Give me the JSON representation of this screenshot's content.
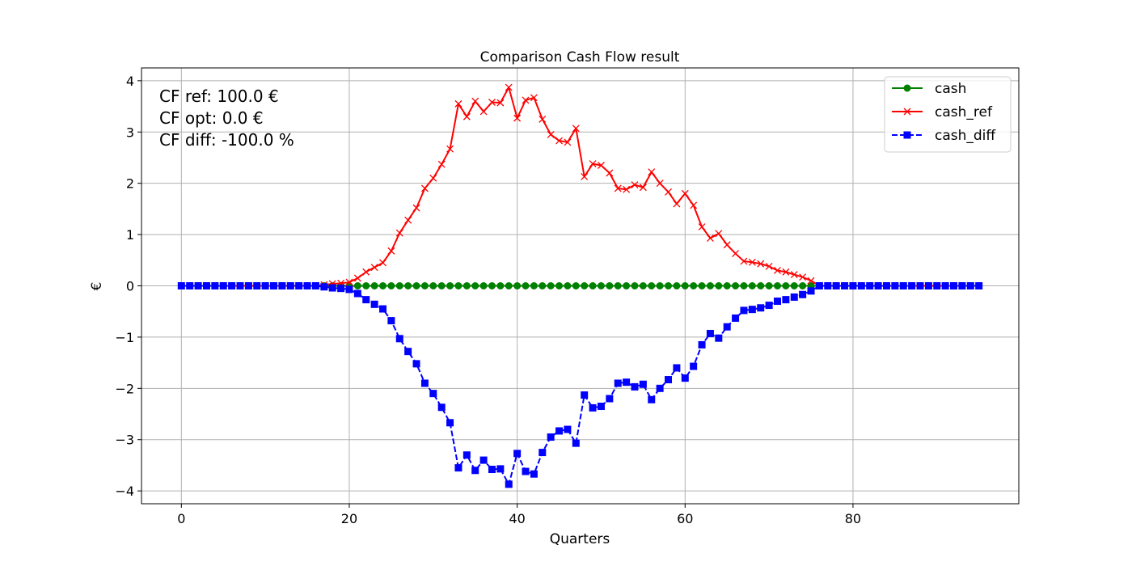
{
  "chart_data": {
    "type": "line",
    "title": "Comparison Cash Flow result",
    "xlabel": "Quarters",
    "ylabel": "€",
    "xlim": [
      -4.75,
      99.75
    ],
    "ylim": [
      -4.25,
      4.25
    ],
    "xticks": [
      0,
      20,
      40,
      60,
      80
    ],
    "yticks": [
      -4,
      -3,
      -2,
      -1,
      0,
      1,
      2,
      3,
      4
    ],
    "grid": true,
    "legend_position": "upper right",
    "annotations": [
      "CF ref: 100.0 €",
      "CF opt: 0.0 €",
      "CF diff: -100.0 %"
    ],
    "x_range": [
      0,
      95
    ],
    "series": [
      {
        "name": "cash",
        "color": "#008000",
        "marker": "circle",
        "linestyle": "solid",
        "values": [
          0,
          0,
          0,
          0,
          0,
          0,
          0,
          0,
          0,
          0,
          0,
          0,
          0,
          0,
          0,
          0,
          0,
          0,
          0,
          0,
          0,
          0,
          0,
          0,
          0,
          0,
          0,
          0,
          0,
          0,
          0,
          0,
          0,
          0,
          0,
          0,
          0,
          0,
          0,
          0,
          0,
          0,
          0,
          0,
          0,
          0,
          0,
          0,
          0,
          0,
          0,
          0,
          0,
          0,
          0,
          0,
          0,
          0,
          0,
          0,
          0,
          0,
          0,
          0,
          0,
          0,
          0,
          0,
          0,
          0,
          0,
          0,
          0,
          0,
          0,
          0,
          0,
          0,
          0,
          0,
          0,
          0,
          0,
          0,
          0,
          0,
          0,
          0,
          0,
          0,
          0,
          0,
          0,
          0,
          0,
          0
        ]
      },
      {
        "name": "cash_ref",
        "color": "#ff0000",
        "marker": "x",
        "linestyle": "solid",
        "values": [
          0,
          0,
          0,
          0,
          0,
          0,
          0,
          0,
          0,
          0,
          0,
          0,
          0,
          0,
          0,
          0,
          0,
          0.02,
          0.04,
          0.05,
          0.07,
          0.15,
          0.27,
          0.36,
          0.45,
          0.68,
          1.03,
          1.28,
          1.52,
          1.9,
          2.1,
          2.37,
          2.67,
          3.55,
          3.3,
          3.6,
          3.4,
          3.58,
          3.57,
          3.87,
          3.27,
          3.62,
          3.67,
          3.25,
          2.95,
          2.83,
          2.8,
          3.07,
          2.13,
          2.38,
          2.35,
          2.2,
          1.9,
          1.88,
          1.97,
          1.92,
          2.22,
          2.0,
          1.83,
          1.6,
          1.8,
          1.57,
          1.15,
          0.93,
          1.02,
          0.8,
          0.63,
          0.48,
          0.46,
          0.43,
          0.38,
          0.3,
          0.27,
          0.22,
          0.17,
          0.1,
          0,
          0,
          0,
          0,
          0,
          0,
          0,
          0,
          0,
          0,
          0,
          0,
          0,
          0,
          0,
          0,
          0,
          0,
          0,
          0
        ]
      },
      {
        "name": "cash_diff",
        "color": "#0000ff",
        "marker": "square",
        "linestyle": "dashed",
        "values": [
          0,
          0,
          0,
          0,
          0,
          0,
          0,
          0,
          0,
          0,
          0,
          0,
          0,
          0,
          0,
          0,
          0,
          -0.02,
          -0.04,
          -0.05,
          -0.07,
          -0.15,
          -0.27,
          -0.36,
          -0.45,
          -0.68,
          -1.03,
          -1.28,
          -1.52,
          -1.9,
          -2.1,
          -2.37,
          -2.67,
          -3.55,
          -3.3,
          -3.6,
          -3.4,
          -3.58,
          -3.57,
          -3.87,
          -3.27,
          -3.62,
          -3.67,
          -3.25,
          -2.95,
          -2.83,
          -2.8,
          -3.07,
          -2.13,
          -2.38,
          -2.35,
          -2.2,
          -1.9,
          -1.88,
          -1.97,
          -1.92,
          -2.22,
          -2.0,
          -1.83,
          -1.6,
          -1.8,
          -1.57,
          -1.15,
          -0.93,
          -1.02,
          -0.8,
          -0.63,
          -0.48,
          -0.46,
          -0.43,
          -0.38,
          -0.3,
          -0.27,
          -0.22,
          -0.17,
          -0.1,
          0,
          0,
          0,
          0,
          0,
          0,
          0,
          0,
          0,
          0,
          0,
          0,
          0,
          0,
          0,
          0,
          0,
          0,
          0,
          0
        ]
      }
    ]
  }
}
